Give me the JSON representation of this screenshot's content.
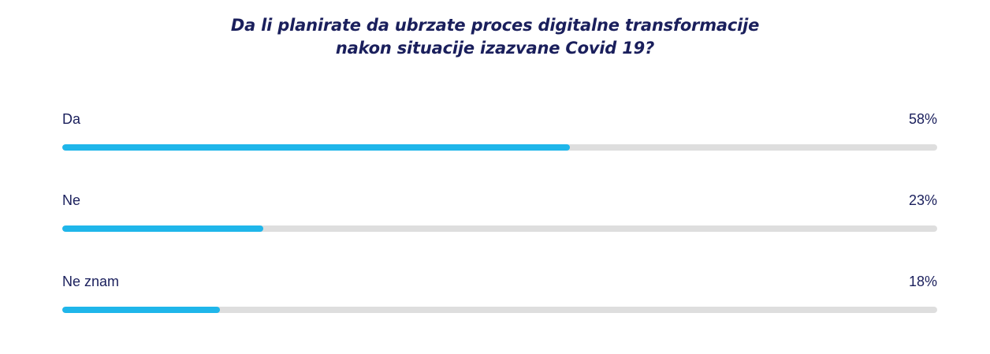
{
  "chart_data": {
    "type": "bar",
    "orientation": "horizontal",
    "title_lines": [
      "Da li planirate da ubrzate proces digitalne transformacije",
      "nakon situacije izazvane Covid 19?"
    ],
    "categories": [
      "Da",
      "Ne",
      "Ne znam"
    ],
    "values": [
      58,
      23,
      18
    ],
    "value_labels": [
      "58%",
      "23%",
      "18%"
    ],
    "unit": "%",
    "xlim": [
      0,
      100
    ],
    "grid": false,
    "legend": "none",
    "colors": {
      "fill": "#1fb6ea",
      "track": "#dedede",
      "text": "#1a1f5c"
    }
  }
}
